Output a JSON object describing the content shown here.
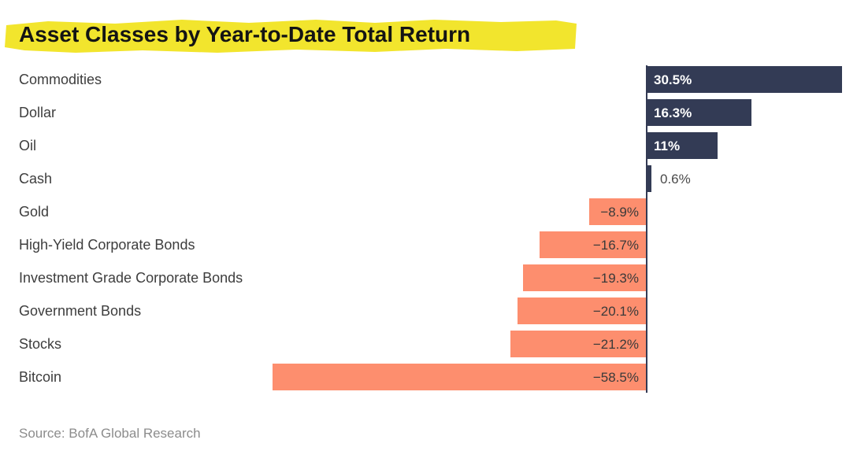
{
  "title": "Asset Classes by Year-to-Date Total Return",
  "source": "Source: BofA Global Research",
  "colors": {
    "positive_bar": "#333b55",
    "negative_bar": "#fd8e6e",
    "title_highlight": "#f2e52d",
    "axis_line": "#333a54",
    "title_text": "#141414",
    "category_text": "#3d3d3d",
    "value_inside_positive": "#ffffff",
    "value_outside_positive": "#4a4a4a",
    "value_negative": "#3a3a3a",
    "source_text": "#8c8c8c"
  },
  "chart_data": {
    "type": "bar",
    "orientation": "horizontal",
    "title": "Asset Classes by Year-to-Date Total Return",
    "categories": [
      "Commodities",
      "Dollar",
      "Oil",
      "Cash",
      "Gold",
      "High-Yield Corporate Bonds",
      "Investment Grade Corporate Bonds",
      "Government Bonds",
      "Stocks",
      "Bitcoin"
    ],
    "values": [
      30.5,
      16.3,
      11,
      0.6,
      -8.9,
      -16.7,
      -19.3,
      -20.1,
      -21.2,
      -58.5
    ],
    "value_labels": [
      "30.5%",
      "16.3%",
      "11%",
      "0.6%",
      "−8.9%",
      "−16.7%",
      "−19.3%",
      "−20.1%",
      "−21.2%",
      "−58.5%"
    ],
    "xlabel": "",
    "ylabel": "",
    "xlim": [
      -60,
      33
    ],
    "grid": false,
    "legend": false,
    "value_labels_shown": true,
    "zero_axis_line": true,
    "source": "Source: BofA Global Research"
  }
}
